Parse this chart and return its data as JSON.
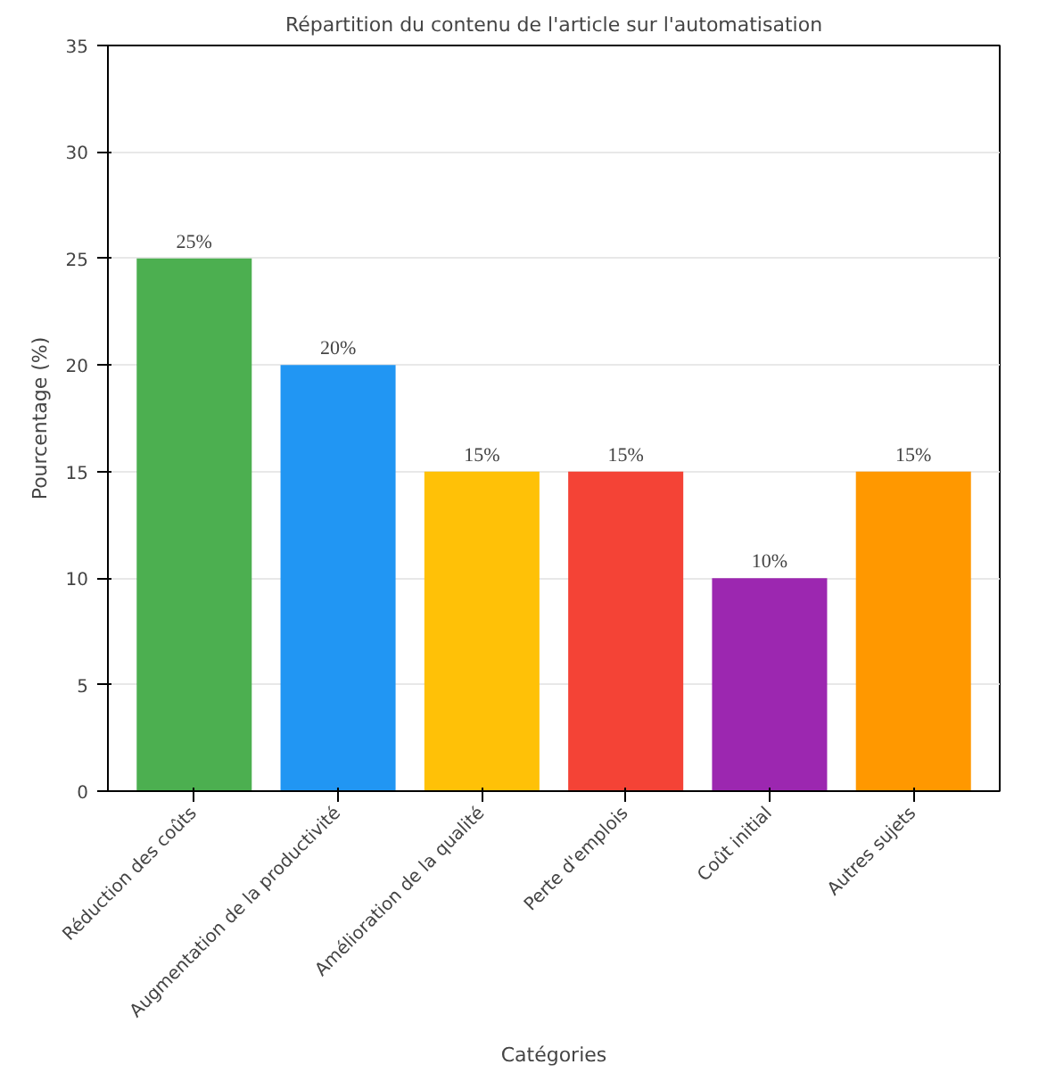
{
  "chart_data": {
    "type": "bar",
    "title": "Répartition du contenu de l'article sur l'automatisation",
    "xlabel": "Catégories",
    "ylabel": "Pourcentage (%)",
    "categories": [
      "Réduction des coûts",
      "Augmentation de la productivité",
      "Amélioration de la qualité",
      "Perte d'emplois",
      "Coût initial",
      "Autres sujets"
    ],
    "values": [
      25,
      20,
      15,
      15,
      10,
      15
    ],
    "colors": [
      "#4caf50",
      "#2196f3",
      "#ffc107",
      "#f44336",
      "#9c27b0",
      "#ff9800"
    ],
    "value_labels": [
      "25%",
      "20%",
      "15%",
      "15%",
      "10%",
      "15%"
    ],
    "ylim": [
      0,
      35
    ],
    "yticks": [
      0,
      5,
      10,
      15,
      20,
      25,
      30,
      35
    ],
    "grid": "y"
  }
}
